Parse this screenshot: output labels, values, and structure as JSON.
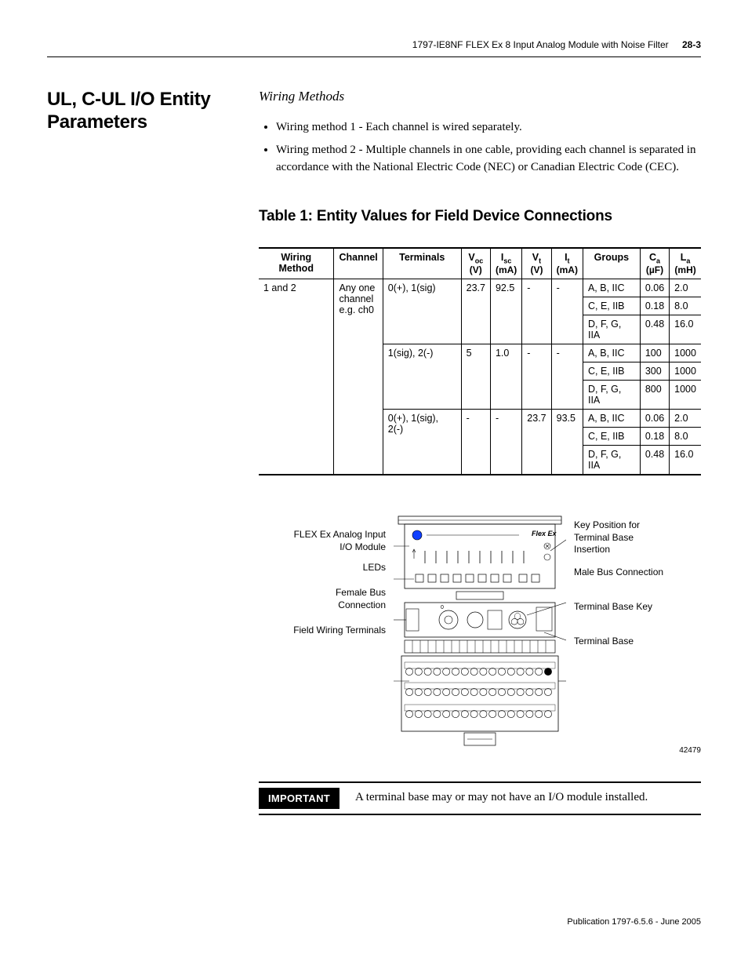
{
  "header": {
    "doc_title": "1797-IE8NF FLEX Ex 8 Input Analog Module with Noise Filter",
    "page_number": "28-3"
  },
  "section": {
    "title": "UL, C-UL I/O Entity Parameters",
    "wiring_heading": "Wiring Methods",
    "bullets": [
      "Wiring method 1 - Each channel is wired separately.",
      "Wiring method 2 - Multiple channels in one cable, providing each channel is separated in accordance with the National Electric Code (NEC) or Canadian Electric Code (CEC)."
    ]
  },
  "table": {
    "title": "Table 1: Entity Values for Field Device Connections",
    "columns": {
      "c0": "Wiring Method",
      "c1": "Channel",
      "c2": "Terminals",
      "c3_main": "V",
      "c3_sub": "oc",
      "c3_unit": "(V)",
      "c4_main": "I",
      "c4_sub": "sc",
      "c4_unit": "(mA)",
      "c5_main": "V",
      "c5_sub": "t",
      "c5_unit": "(V)",
      "c6_main": "I",
      "c6_sub": "t",
      "c6_unit": "(mA)",
      "c7": "Groups",
      "c8_main": "C",
      "c8_sub": "a",
      "c8_unit": "(µF)",
      "c9_main": "L",
      "c9_sub": "a",
      "c9_unit": "(mH)"
    },
    "wiring_method_cell": "1 and 2",
    "channel_cell_l1": "Any one",
    "channel_cell_l2": "channel",
    "channel_cell_l3": "e.g. ch0",
    "blocks": [
      {
        "terminals": "0(+), 1(sig)",
        "voc": "23.7",
        "isc": "92.5",
        "vt": "-",
        "it": "-",
        "rows": [
          {
            "groups": "A, B, IIC",
            "ca": "0.06",
            "la": "2.0"
          },
          {
            "groups": "C, E, IIB",
            "ca": "0.18",
            "la": "8.0"
          },
          {
            "groups": "D, F, G, IIA",
            "ca": "0.48",
            "la": "16.0"
          }
        ]
      },
      {
        "terminals": "1(sig), 2(-)",
        "voc": "5",
        "isc": "1.0",
        "vt": "-",
        "it": "-",
        "rows": [
          {
            "groups": "A, B, IIC",
            "ca": "100",
            "la": "1000"
          },
          {
            "groups": "C, E, IIB",
            "ca": "300",
            "la": "1000"
          },
          {
            "groups": "D, F, G, IIA",
            "ca": "800",
            "la": "1000"
          }
        ]
      },
      {
        "terminals": "0(+), 1(sig), 2(-)",
        "voc": "-",
        "isc": "-",
        "vt": "23.7",
        "it": "93.5",
        "rows": [
          {
            "groups": "A, B, IIC",
            "ca": "0.06",
            "la": "2.0"
          },
          {
            "groups": "C, E, IIB",
            "ca": "0.18",
            "la": "8.0"
          },
          {
            "groups": "D, F, G, IIA",
            "ca": "0.48",
            "la": "16.0"
          }
        ]
      }
    ]
  },
  "diagram": {
    "left": {
      "l0": "FLEX Ex Analog Input I/O Module",
      "l1": "LEDs",
      "l2": "Female Bus Connection",
      "l3": "Field Wiring Terminals"
    },
    "right": {
      "r0": "Key Position for Terminal Base Insertion",
      "r1": "Male Bus Connection",
      "r2": "Terminal Base Key",
      "r3": "Terminal Base"
    },
    "fig_number": "42479",
    "logo_text": "Flex Ex"
  },
  "important": {
    "label": "IMPORTANT",
    "text": "A terminal base may or may not have an I/O module installed."
  },
  "footer": {
    "publication": "Publication 1797-6.5.6 - June 2005"
  }
}
